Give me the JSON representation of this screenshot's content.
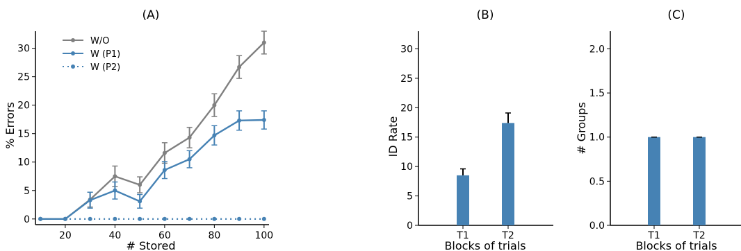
{
  "chart_data": [
    {
      "type": "line",
      "title": "(A)",
      "xlabel": "# Stored",
      "ylabel": "% Errors",
      "xlim": [
        8,
        102
      ],
      "ylim": [
        -1,
        33
      ],
      "xticks": [
        20,
        40,
        60,
        80,
        100
      ],
      "yticks": [
        0,
        5,
        10,
        15,
        20,
        25,
        30
      ],
      "grid": false,
      "legend": "top-left",
      "x": [
        10,
        20,
        30,
        40,
        50,
        60,
        70,
        80,
        90,
        100
      ],
      "series": [
        {
          "name": "W/O",
          "color": "#808080",
          "style": "solid",
          "values": [
            0,
            0,
            3.4,
            7.5,
            6.0,
            11.6,
            14.3,
            20.0,
            26.7,
            31.0
          ],
          "errors": [
            0,
            0,
            1.3,
            1.8,
            1.4,
            1.8,
            1.8,
            2.0,
            2.0,
            2.0
          ]
        },
        {
          "name": "W (P1)",
          "color": "#4682b4",
          "style": "solid",
          "values": [
            0,
            0,
            3.3,
            5.0,
            3.1,
            8.6,
            10.5,
            14.7,
            17.3,
            17.4
          ],
          "errors": [
            0,
            0,
            1.4,
            1.5,
            1.2,
            1.5,
            1.5,
            1.7,
            1.7,
            1.6
          ]
        },
        {
          "name": "W (P2)",
          "color": "#4682b4",
          "style": "dotted",
          "values": [
            0,
            0,
            0,
            0,
            0,
            0,
            0,
            0,
            0,
            0
          ],
          "errors": [
            0,
            0,
            0,
            0,
            0,
            0,
            0,
            0,
            0,
            0
          ]
        }
      ]
    },
    {
      "type": "bar",
      "title": "(B)",
      "xlabel": "Blocks of trials",
      "ylabel": "ID Rate",
      "ylim": [
        0,
        33
      ],
      "yticks": [
        0,
        5,
        10,
        15,
        20,
        25,
        30
      ],
      "categories": [
        "T1",
        "T2"
      ],
      "values": [
        8.5,
        17.4
      ],
      "errors": [
        1.1,
        1.7
      ],
      "color": "#4682b4"
    },
    {
      "type": "bar",
      "title": "(C)",
      "xlabel": "Blocks of trials",
      "ylabel": "# Groups",
      "ylim": [
        0,
        2.2
      ],
      "yticks": [
        0.0,
        0.5,
        1.0,
        1.5,
        2.0
      ],
      "ytick_labels": [
        "0.0",
        "0.5",
        "1.0",
        "1.5",
        "2.0"
      ],
      "categories": [
        "T1",
        "T2"
      ],
      "values": [
        1.0,
        1.0
      ],
      "errors": [
        0,
        0
      ],
      "color": "#4682b4"
    }
  ]
}
